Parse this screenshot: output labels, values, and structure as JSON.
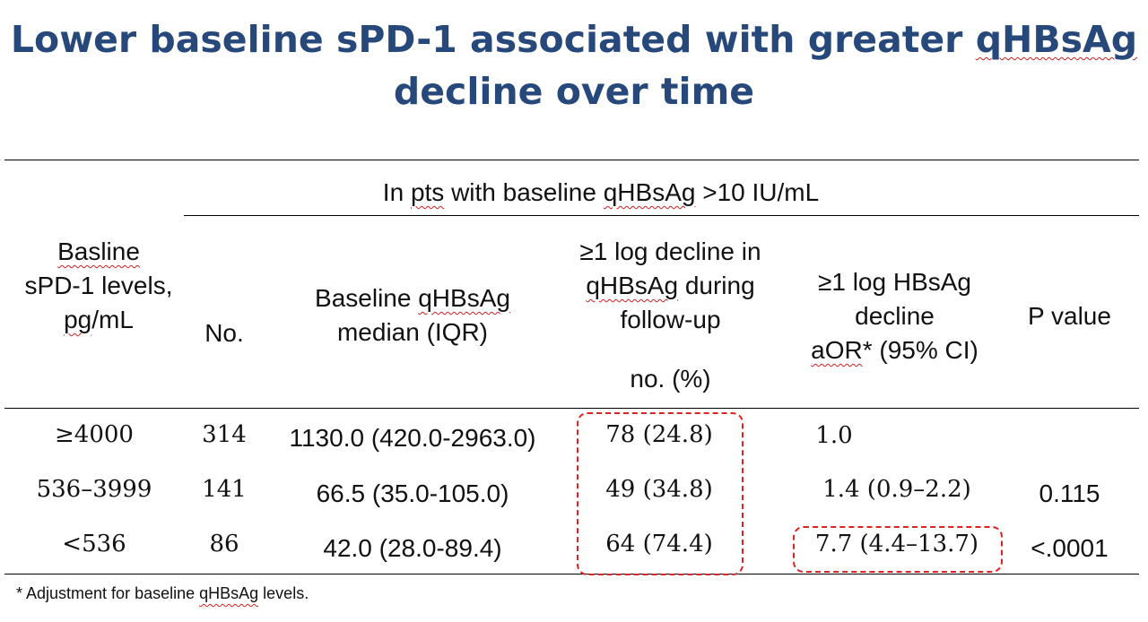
{
  "title": {
    "line1_pre": "Lower baseline sPD-1 associated with greater ",
    "line1_term": "qHBsAg",
    "line2": "decline over time"
  },
  "group_header": {
    "pre": "In ",
    "pts": "pts",
    "mid": " with baseline ",
    "term": "qHBsAg",
    "post": " >10 IU/mL"
  },
  "headers": {
    "col1": {
      "l1": "Basline",
      "l2": "sPD-1 levels,",
      "l3a": "pg",
      "l3b": "/mL"
    },
    "col2": "No.",
    "col3": {
      "l1a": "Baseline ",
      "l1b": "qHBsAg",
      "l2": "median (IQR)"
    },
    "col4": {
      "l1": "≥1 log decline in",
      "l2a": "qHBsAg",
      "l2b": " during",
      "l3": "follow-up",
      "l4": "no. (%)"
    },
    "col5": {
      "l1": "≥1 log HBsAg",
      "l2": "decline",
      "l3a": "aOR",
      "l3b": "* (95% CI)"
    },
    "col6": "P value"
  },
  "rows": [
    {
      "level": "≥4000",
      "no": "314",
      "median": "1130.0 (420.0-2963.0)",
      "decline": "78 (24.8)",
      "aor": "1.0",
      "p": ""
    },
    {
      "level": "536–3999",
      "no": "141",
      "median": "66.5 (35.0-105.0)",
      "decline": "49 (34.8)",
      "aor": "1.4 (0.9–2.2)",
      "p": "0.115"
    },
    {
      "level": "<536",
      "no": "86",
      "median": "42.0 (28.0-89.4)",
      "decline": "64 (74.4)",
      "aor": "7.7 (4.4–13.7)",
      "p": "<.0001"
    }
  ],
  "footnote": {
    "pre": "* Adjustment for baseline ",
    "term": "qHBsAg",
    "post": " levels."
  },
  "colors": {
    "title": "#27487a",
    "highlight": "#dd2222"
  }
}
